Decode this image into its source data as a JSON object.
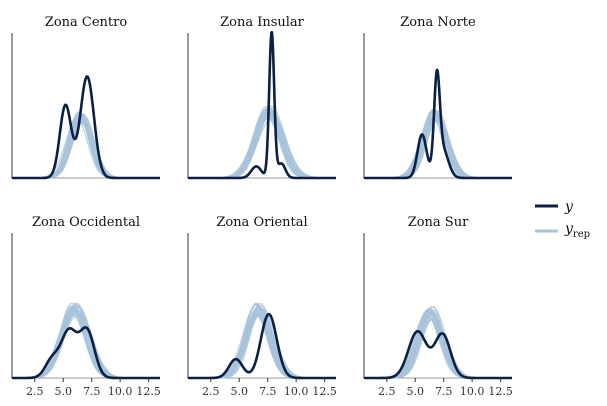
{
  "chart_data": {
    "type": "line",
    "kind": "posterior predictive density overlay",
    "xlim": [
      0.5,
      13.5
    ],
    "x_ticks": [
      2.5,
      5.0,
      7.5,
      10.0,
      12.5
    ],
    "x_tick_labels": [
      "2.5",
      "5.0",
      "7.5",
      "10.0",
      "12.5"
    ],
    "x_ticks_shown_on": "bottom row",
    "y_axis_ticks": "none",
    "grid": false,
    "layout": {
      "rows": 2,
      "cols": 3
    },
    "colors": {
      "y": "#0b2045",
      "y_rep": "#a8c3da",
      "baseline": "#9a9a9a",
      "axis": "#333333"
    },
    "legend": {
      "placement": "right",
      "entries": [
        {
          "label": "y",
          "subscript": "",
          "color": "#0b2045"
        },
        {
          "label": "y",
          "subscript": "rep",
          "color": "#a8c3da"
        }
      ]
    },
    "panels": [
      {
        "title": "Zona Centro",
        "y_comps": [
          [
            5.2,
            0.5,
            0.5
          ],
          [
            7.1,
            0.6,
            0.7
          ]
        ],
        "yrep": {
          "mean": 6.5,
          "sd": 0.95,
          "peak": 0.42
        }
      },
      {
        "title": "Zona Insular",
        "y_comps": [
          [
            6.5,
            0.45,
            0.08
          ],
          [
            7.85,
            0.22,
            1.0
          ],
          [
            8.7,
            0.35,
            0.1
          ]
        ],
        "yrep": {
          "mean": 7.6,
          "sd": 1.15,
          "peak": 0.45
        }
      },
      {
        "title": "Zona Norte",
        "y_comps": [
          [
            5.6,
            0.4,
            0.3
          ],
          [
            6.9,
            0.25,
            0.62
          ],
          [
            7.4,
            0.5,
            0.2
          ]
        ],
        "yrep": {
          "mean": 6.7,
          "sd": 1.0,
          "peak": 0.43
        }
      },
      {
        "title": "Zona Occidental",
        "y_comps": [
          [
            4.0,
            0.6,
            0.12
          ],
          [
            5.5,
            0.7,
            0.32
          ],
          [
            7.1,
            0.65,
            0.32
          ]
        ],
        "yrep": {
          "mean": 6.0,
          "sd": 1.15,
          "peak": 0.47
        }
      },
      {
        "title": "Zona Oriental",
        "y_comps": [
          [
            4.7,
            0.6,
            0.13
          ],
          [
            7.6,
            0.7,
            0.44
          ]
        ],
        "yrep": {
          "mean": 6.7,
          "sd": 1.1,
          "peak": 0.47
        }
      },
      {
        "title": "Zona Sur",
        "y_comps": [
          [
            5.2,
            0.8,
            0.32
          ],
          [
            7.4,
            0.7,
            0.3
          ]
        ],
        "yrep": {
          "mean": 6.3,
          "sd": 1.05,
          "peak": 0.45
        }
      }
    ]
  }
}
